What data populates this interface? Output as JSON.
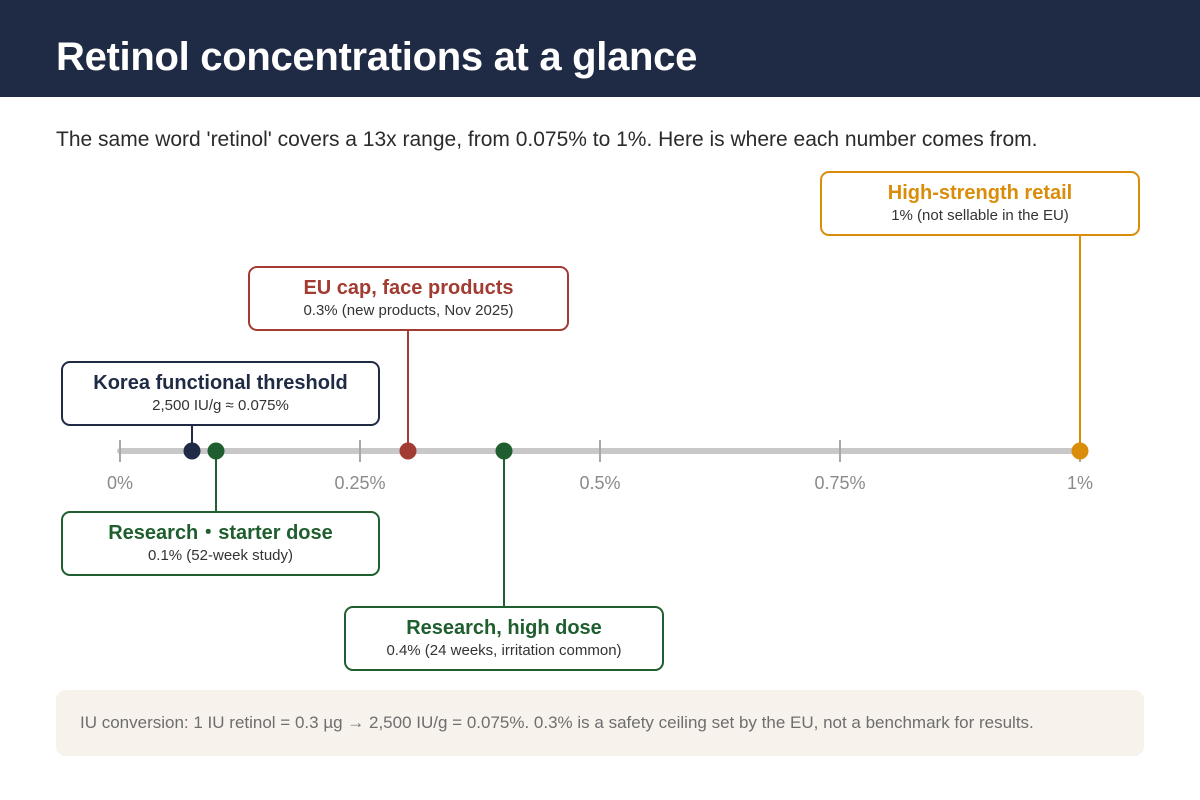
{
  "title": "Retinol concentrations at a glance",
  "subtitle": "The same word 'retinol' covers a 13x range, from 0.075% to 1%. Here is where each number comes from.",
  "axis": {
    "min": 0,
    "max": 1,
    "ticks": [
      {
        "value": 0,
        "label": "0%"
      },
      {
        "value": 0.25,
        "label": "0.25%"
      },
      {
        "value": 0.5,
        "label": "0.5%"
      },
      {
        "value": 0.75,
        "label": "0.75%"
      },
      {
        "value": 1,
        "label": "1%"
      }
    ]
  },
  "markers": [
    {
      "id": "korea",
      "value": 0.075,
      "color": "#1f2a44",
      "title": "Korea functional threshold",
      "subtitle": "2,500 IU/g ≈ 0.075%"
    },
    {
      "id": "starter",
      "value": 0.1,
      "color": "#1f5e2e",
      "title": "Research・starter dose",
      "subtitle": "0.1% (52-week study)"
    },
    {
      "id": "eu",
      "value": 0.3,
      "color": "#a23b32",
      "title": "EU cap, face products",
      "subtitle": "0.3% (new products, Nov 2025)"
    },
    {
      "id": "high",
      "value": 0.4,
      "color": "#1f5e2e",
      "title": "Research, high dose",
      "subtitle": "0.4% (24 weeks, irritation common)"
    },
    {
      "id": "retail",
      "value": 1,
      "color": "#d98d0a",
      "title": "High-strength retail",
      "subtitle": "1% (not sellable in the EU)"
    }
  ],
  "note": "IU conversion: 1 IU retinol = 0.3 µg → 2,500 IU/g = 0.075%.  0.3% is a safety ceiling set by the EU, not a benchmark for results.",
  "colors": {
    "header_bg": "#1f2a44",
    "axis": "#c8c8c8",
    "note_bg": "#f7f3ec"
  }
}
